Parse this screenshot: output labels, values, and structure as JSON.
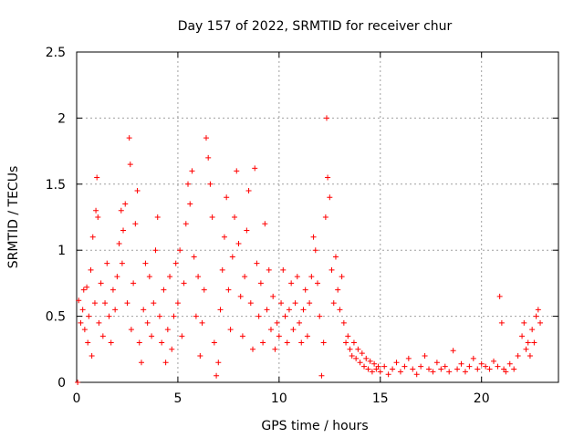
{
  "chart_data": {
    "type": "scatter",
    "title": "Day 157 of 2022, SRMTID for receiver chur",
    "xlabel": "GPS time / hours",
    "ylabel": "SRMTID / TECUs",
    "xlim": [
      0,
      23.8
    ],
    "ylim": [
      0,
      2.5
    ],
    "xticks": [
      "0",
      "5",
      "10",
      "15",
      "20"
    ],
    "yticks": [
      "0",
      "0.5",
      "1",
      "1.5",
      "2",
      "2.5"
    ],
    "grid": true,
    "marker": "+",
    "color": "#ff0000",
    "series": [
      {
        "name": "SRMTID",
        "points": [
          [
            0.05,
            0.0
          ],
          [
            0.1,
            0.62
          ],
          [
            0.2,
            0.45
          ],
          [
            0.3,
            0.55
          ],
          [
            0.35,
            0.7
          ],
          [
            0.4,
            0.4
          ],
          [
            0.5,
            0.72
          ],
          [
            0.55,
            0.3
          ],
          [
            0.6,
            0.5
          ],
          [
            0.7,
            0.85
          ],
          [
            0.75,
            0.2
          ],
          [
            0.8,
            1.1
          ],
          [
            0.9,
            0.6
          ],
          [
            0.95,
            1.3
          ],
          [
            1.0,
            1.55
          ],
          [
            1.05,
            1.25
          ],
          [
            1.1,
            0.45
          ],
          [
            1.2,
            0.75
          ],
          [
            1.3,
            0.35
          ],
          [
            1.4,
            0.6
          ],
          [
            1.5,
            0.9
          ],
          [
            1.6,
            0.5
          ],
          [
            1.7,
            0.3
          ],
          [
            1.8,
            0.7
          ],
          [
            1.9,
            0.55
          ],
          [
            2.0,
            0.8
          ],
          [
            2.1,
            1.05
          ],
          [
            2.2,
            1.3
          ],
          [
            2.25,
            0.9
          ],
          [
            2.3,
            1.15
          ],
          [
            2.4,
            1.35
          ],
          [
            2.5,
            0.6
          ],
          [
            2.6,
            1.85
          ],
          [
            2.65,
            1.65
          ],
          [
            2.7,
            0.4
          ],
          [
            2.8,
            0.75
          ],
          [
            2.9,
            1.2
          ],
          [
            3.0,
            1.45
          ],
          [
            3.1,
            0.3
          ],
          [
            3.2,
            0.15
          ],
          [
            3.3,
            0.55
          ],
          [
            3.4,
            0.9
          ],
          [
            3.5,
            0.45
          ],
          [
            3.6,
            0.8
          ],
          [
            3.7,
            0.35
          ],
          [
            3.8,
            0.6
          ],
          [
            3.9,
            1.0
          ],
          [
            4.0,
            1.25
          ],
          [
            4.1,
            0.5
          ],
          [
            4.2,
            0.3
          ],
          [
            4.3,
            0.7
          ],
          [
            4.4,
            0.15
          ],
          [
            4.5,
            0.4
          ],
          [
            4.6,
            0.8
          ],
          [
            4.7,
            0.25
          ],
          [
            4.8,
            0.5
          ],
          [
            4.9,
            0.9
          ],
          [
            5.0,
            0.6
          ],
          [
            5.1,
            1.0
          ],
          [
            5.2,
            0.35
          ],
          [
            5.3,
            0.75
          ],
          [
            5.4,
            1.2
          ],
          [
            5.5,
            1.5
          ],
          [
            5.6,
            1.35
          ],
          [
            5.7,
            1.6
          ],
          [
            5.8,
            0.95
          ],
          [
            5.9,
            0.5
          ],
          [
            6.0,
            0.8
          ],
          [
            6.1,
            0.2
          ],
          [
            6.2,
            0.45
          ],
          [
            6.3,
            0.7
          ],
          [
            6.4,
            1.85
          ],
          [
            6.5,
            1.7
          ],
          [
            6.6,
            1.5
          ],
          [
            6.7,
            1.25
          ],
          [
            6.8,
            0.3
          ],
          [
            6.9,
            0.05
          ],
          [
            7.0,
            0.15
          ],
          [
            7.1,
            0.55
          ],
          [
            7.2,
            0.85
          ],
          [
            7.3,
            1.1
          ],
          [
            7.4,
            1.4
          ],
          [
            7.5,
            0.7
          ],
          [
            7.6,
            0.4
          ],
          [
            7.7,
            0.95
          ],
          [
            7.8,
            1.25
          ],
          [
            7.9,
            1.6
          ],
          [
            8.0,
            1.05
          ],
          [
            8.1,
            0.65
          ],
          [
            8.2,
            0.35
          ],
          [
            8.3,
            0.8
          ],
          [
            8.4,
            1.15
          ],
          [
            8.5,
            1.45
          ],
          [
            8.6,
            0.6
          ],
          [
            8.7,
            0.25
          ],
          [
            8.8,
            1.62
          ],
          [
            8.9,
            0.9
          ],
          [
            9.0,
            0.5
          ],
          [
            9.1,
            0.75
          ],
          [
            9.2,
            0.3
          ],
          [
            9.3,
            1.2
          ],
          [
            9.4,
            0.55
          ],
          [
            9.5,
            0.85
          ],
          [
            9.6,
            0.4
          ],
          [
            9.7,
            0.65
          ],
          [
            9.8,
            0.25
          ],
          [
            9.9,
            0.45
          ],
          [
            10.0,
            0.35
          ],
          [
            10.1,
            0.6
          ],
          [
            10.2,
            0.85
          ],
          [
            10.3,
            0.5
          ],
          [
            10.4,
            0.3
          ],
          [
            10.5,
            0.55
          ],
          [
            10.6,
            0.75
          ],
          [
            10.7,
            0.4
          ],
          [
            10.8,
            0.6
          ],
          [
            10.9,
            0.8
          ],
          [
            11.0,
            0.45
          ],
          [
            11.1,
            0.3
          ],
          [
            11.2,
            0.55
          ],
          [
            11.3,
            0.7
          ],
          [
            11.4,
            0.35
          ],
          [
            11.5,
            0.6
          ],
          [
            11.6,
            0.8
          ],
          [
            11.7,
            1.1
          ],
          [
            11.8,
            1.0
          ],
          [
            11.9,
            0.75
          ],
          [
            12.0,
            0.5
          ],
          [
            12.1,
            0.05
          ],
          [
            12.2,
            0.3
          ],
          [
            12.3,
            1.25
          ],
          [
            12.35,
            2.0
          ],
          [
            12.4,
            1.55
          ],
          [
            12.5,
            1.4
          ],
          [
            12.6,
            0.85
          ],
          [
            12.7,
            0.6
          ],
          [
            12.8,
            0.95
          ],
          [
            12.9,
            0.7
          ],
          [
            13.0,
            0.55
          ],
          [
            13.1,
            0.8
          ],
          [
            13.2,
            0.45
          ],
          [
            13.3,
            0.3
          ],
          [
            13.4,
            0.35
          ],
          [
            13.5,
            0.25
          ],
          [
            13.6,
            0.2
          ],
          [
            13.7,
            0.3
          ],
          [
            13.8,
            0.18
          ],
          [
            13.9,
            0.25
          ],
          [
            14.0,
            0.15
          ],
          [
            14.1,
            0.22
          ],
          [
            14.2,
            0.12
          ],
          [
            14.3,
            0.18
          ],
          [
            14.4,
            0.1
          ],
          [
            14.5,
            0.16
          ],
          [
            14.6,
            0.08
          ],
          [
            14.7,
            0.14
          ],
          [
            14.8,
            0.1
          ],
          [
            14.9,
            0.12
          ],
          [
            15.0,
            0.08
          ],
          [
            15.2,
            0.12
          ],
          [
            15.4,
            0.06
          ],
          [
            15.6,
            0.1
          ],
          [
            15.8,
            0.15
          ],
          [
            16.0,
            0.08
          ],
          [
            16.2,
            0.12
          ],
          [
            16.4,
            0.18
          ],
          [
            16.6,
            0.1
          ],
          [
            16.8,
            0.06
          ],
          [
            17.0,
            0.12
          ],
          [
            17.2,
            0.2
          ],
          [
            17.4,
            0.1
          ],
          [
            17.6,
            0.08
          ],
          [
            17.8,
            0.15
          ],
          [
            18.0,
            0.1
          ],
          [
            18.2,
            0.12
          ],
          [
            18.4,
            0.08
          ],
          [
            18.6,
            0.24
          ],
          [
            18.8,
            0.1
          ],
          [
            19.0,
            0.14
          ],
          [
            19.2,
            0.08
          ],
          [
            19.4,
            0.12
          ],
          [
            19.6,
            0.18
          ],
          [
            19.8,
            0.1
          ],
          [
            20.0,
            0.14
          ],
          [
            20.2,
            0.12
          ],
          [
            20.4,
            0.1
          ],
          [
            20.6,
            0.16
          ],
          [
            20.8,
            0.12
          ],
          [
            20.9,
            0.65
          ],
          [
            21.0,
            0.45
          ],
          [
            21.1,
            0.1
          ],
          [
            21.2,
            0.08
          ],
          [
            21.4,
            0.14
          ],
          [
            21.6,
            0.1
          ],
          [
            21.8,
            0.2
          ],
          [
            22.0,
            0.35
          ],
          [
            22.1,
            0.45
          ],
          [
            22.2,
            0.25
          ],
          [
            22.3,
            0.3
          ],
          [
            22.4,
            0.2
          ],
          [
            22.5,
            0.4
          ],
          [
            22.6,
            0.3
          ],
          [
            22.7,
            0.5
          ],
          [
            22.8,
            0.55
          ],
          [
            22.9,
            0.45
          ]
        ]
      }
    ]
  }
}
